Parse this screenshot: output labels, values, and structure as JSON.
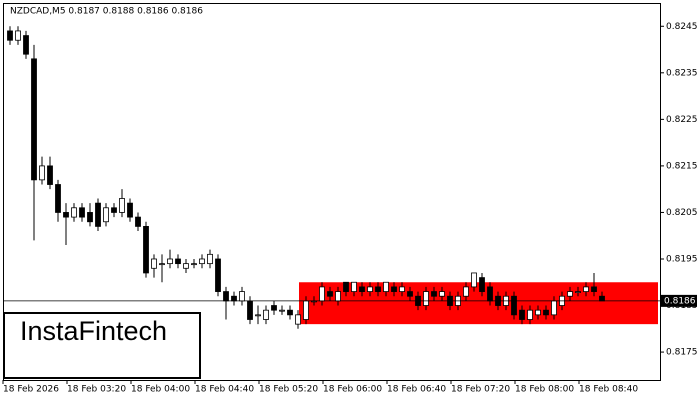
{
  "chart_data": {
    "type": "candlestick",
    "title": "NZDCAD,M5  0.8187 0.8188 0.8186 0.8186",
    "logo": "InstaFintech",
    "categories": [
      "18 Feb 2026",
      null,
      null,
      null,
      null,
      null,
      null,
      null,
      "18 Feb 03:20",
      null,
      null,
      null,
      null,
      null,
      null,
      null,
      "18 Feb 04:00",
      null,
      null,
      null,
      null,
      null,
      null,
      null,
      "18 Feb 04:40",
      null,
      null,
      null,
      null,
      null,
      null,
      null,
      "18 Feb 05:20",
      null,
      null,
      null,
      null,
      null,
      null,
      null,
      "18 Feb 06:00",
      null,
      null,
      null,
      null,
      null,
      null,
      null,
      "18 Feb 06:40",
      null,
      null,
      null,
      null,
      null,
      null,
      null,
      "18 Feb 07:20",
      null,
      null,
      null,
      null,
      null,
      null,
      null,
      "18 Feb 08:00",
      null,
      null,
      null,
      null,
      null,
      null,
      null,
      "18 Feb 08:40",
      null,
      null
    ],
    "ohlc": [
      [
        0.8244,
        0.8245,
        0.8241,
        0.8242
      ],
      [
        0.8242,
        0.8245,
        0.8241,
        0.8244
      ],
      [
        0.8243,
        0.8244,
        0.8238,
        0.8239
      ],
      [
        0.8238,
        0.8241,
        0.8199,
        0.8212
      ],
      [
        0.8212,
        0.8217,
        0.8211,
        0.8215
      ],
      [
        0.8215,
        0.8217,
        0.821,
        0.8211
      ],
      [
        0.8211,
        0.8212,
        0.8203,
        0.8205
      ],
      [
        0.8205,
        0.8207,
        0.8198,
        0.8204
      ],
      [
        0.8204,
        0.8207,
        0.8203,
        0.8206
      ],
      [
        0.8206,
        0.8207,
        0.8203,
        0.8204
      ],
      [
        0.8205,
        0.8207,
        0.8202,
        0.8203
      ],
      [
        0.8207,
        0.8208,
        0.8201,
        0.8202
      ],
      [
        0.8203,
        0.8207,
        0.8202,
        0.8206
      ],
      [
        0.8206,
        0.8207,
        0.8204,
        0.8205
      ],
      [
        0.8205,
        0.821,
        0.8204,
        0.8208
      ],
      [
        0.8207,
        0.8208,
        0.8203,
        0.8204
      ],
      [
        0.8204,
        0.8205,
        0.8201,
        0.8202
      ],
      [
        0.8202,
        0.8203,
        0.8191,
        0.8192
      ],
      [
        0.8193,
        0.8196,
        0.8191,
        0.8195
      ],
      [
        0.8194,
        0.8196,
        0.819,
        0.8194
      ],
      [
        0.8194,
        0.8197,
        0.8193,
        0.8195
      ],
      [
        0.8195,
        0.8196,
        0.8193,
        0.8194
      ],
      [
        0.8193,
        0.8195,
        0.8192,
        0.8194
      ],
      [
        0.8194,
        0.8195,
        0.8193,
        0.8194
      ],
      [
        0.8194,
        0.8196,
        0.8193,
        0.8195
      ],
      [
        0.8194,
        0.8197,
        0.8193,
        0.8196
      ],
      [
        0.8195,
        0.8196,
        0.8187,
        0.8188
      ],
      [
        0.8188,
        0.8189,
        0.8182,
        0.8186
      ],
      [
        0.8187,
        0.8188,
        0.8185,
        0.8186
      ],
      [
        0.8186,
        0.8189,
        0.8185,
        0.8188
      ],
      [
        0.8186,
        0.8187,
        0.8181,
        0.8182
      ],
      [
        0.8183,
        0.8185,
        0.8181,
        0.8183
      ],
      [
        0.8182,
        0.8185,
        0.8181,
        0.8184
      ],
      [
        0.8185,
        0.8186,
        0.8183,
        0.8184
      ],
      [
        0.8184,
        0.8185,
        0.8183,
        0.8184
      ],
      [
        0.8184,
        0.8185,
        0.8182,
        0.8183
      ],
      [
        0.8181,
        0.8184,
        0.818,
        0.8183
      ],
      [
        0.8182,
        0.8187,
        0.8181,
        0.8186
      ],
      [
        0.8186,
        0.8187,
        0.8185,
        0.8186
      ],
      [
        0.8186,
        0.819,
        0.8185,
        0.8189
      ],
      [
        0.8188,
        0.8189,
        0.8186,
        0.8187
      ],
      [
        0.8186,
        0.8189,
        0.8185,
        0.8188
      ],
      [
        0.819,
        0.819,
        0.8187,
        0.8188
      ],
      [
        0.8188,
        0.819,
        0.8187,
        0.819
      ],
      [
        0.8189,
        0.819,
        0.8187,
        0.8188
      ],
      [
        0.8188,
        0.819,
        0.8187,
        0.8189
      ],
      [
        0.8189,
        0.819,
        0.8187,
        0.8188
      ],
      [
        0.8188,
        0.819,
        0.8187,
        0.819
      ],
      [
        0.8189,
        0.819,
        0.8187,
        0.8188
      ],
      [
        0.8188,
        0.819,
        0.8187,
        0.8189
      ],
      [
        0.8188,
        0.8189,
        0.8186,
        0.8187
      ],
      [
        0.8187,
        0.8188,
        0.8184,
        0.8185
      ],
      [
        0.8185,
        0.8189,
        0.8184,
        0.8188
      ],
      [
        0.8188,
        0.8189,
        0.8186,
        0.8187
      ],
      [
        0.8187,
        0.8189,
        0.8186,
        0.8188
      ],
      [
        0.8187,
        0.8188,
        0.8184,
        0.8185
      ],
      [
        0.8185,
        0.8188,
        0.8184,
        0.8187
      ],
      [
        0.8187,
        0.819,
        0.8186,
        0.8189
      ],
      [
        0.8189,
        0.8192,
        0.8188,
        0.8192
      ],
      [
        0.8191,
        0.8192,
        0.8187,
        0.8188
      ],
      [
        0.8189,
        0.819,
        0.8185,
        0.8186
      ],
      [
        0.8187,
        0.8188,
        0.8184,
        0.8185
      ],
      [
        0.8185,
        0.8188,
        0.8184,
        0.8187
      ],
      [
        0.8187,
        0.8188,
        0.8182,
        0.8183
      ],
      [
        0.8184,
        0.8185,
        0.8181,
        0.8182
      ],
      [
        0.8182,
        0.8185,
        0.8181,
        0.8184
      ],
      [
        0.8183,
        0.8185,
        0.8182,
        0.8184
      ],
      [
        0.8184,
        0.8185,
        0.8182,
        0.8183
      ],
      [
        0.8183,
        0.8187,
        0.8182,
        0.8186
      ],
      [
        0.8185,
        0.8188,
        0.8184,
        0.8187
      ],
      [
        0.8187,
        0.8189,
        0.8186,
        0.8188
      ],
      [
        0.8188,
        0.8189,
        0.8187,
        0.8188
      ],
      [
        0.8188,
        0.819,
        0.8187,
        0.8189
      ],
      [
        0.8189,
        0.8192,
        0.8187,
        0.8188
      ],
      [
        0.8187,
        0.8188,
        0.8186,
        0.8186
      ]
    ],
    "up_color": "#ffffff",
    "down_color": "#000000",
    "zone": {
      "high": 0.819,
      "low": 0.8181,
      "color": "#ff0000"
    },
    "last_price": {
      "value": 0.8186,
      "label": "0.8186"
    },
    "ylim": [
      0.8169,
      0.825
    ],
    "yticks": [
      0.8175,
      0.8185,
      0.8195,
      0.8205,
      0.8215,
      0.8225,
      0.8235,
      0.8245
    ]
  }
}
